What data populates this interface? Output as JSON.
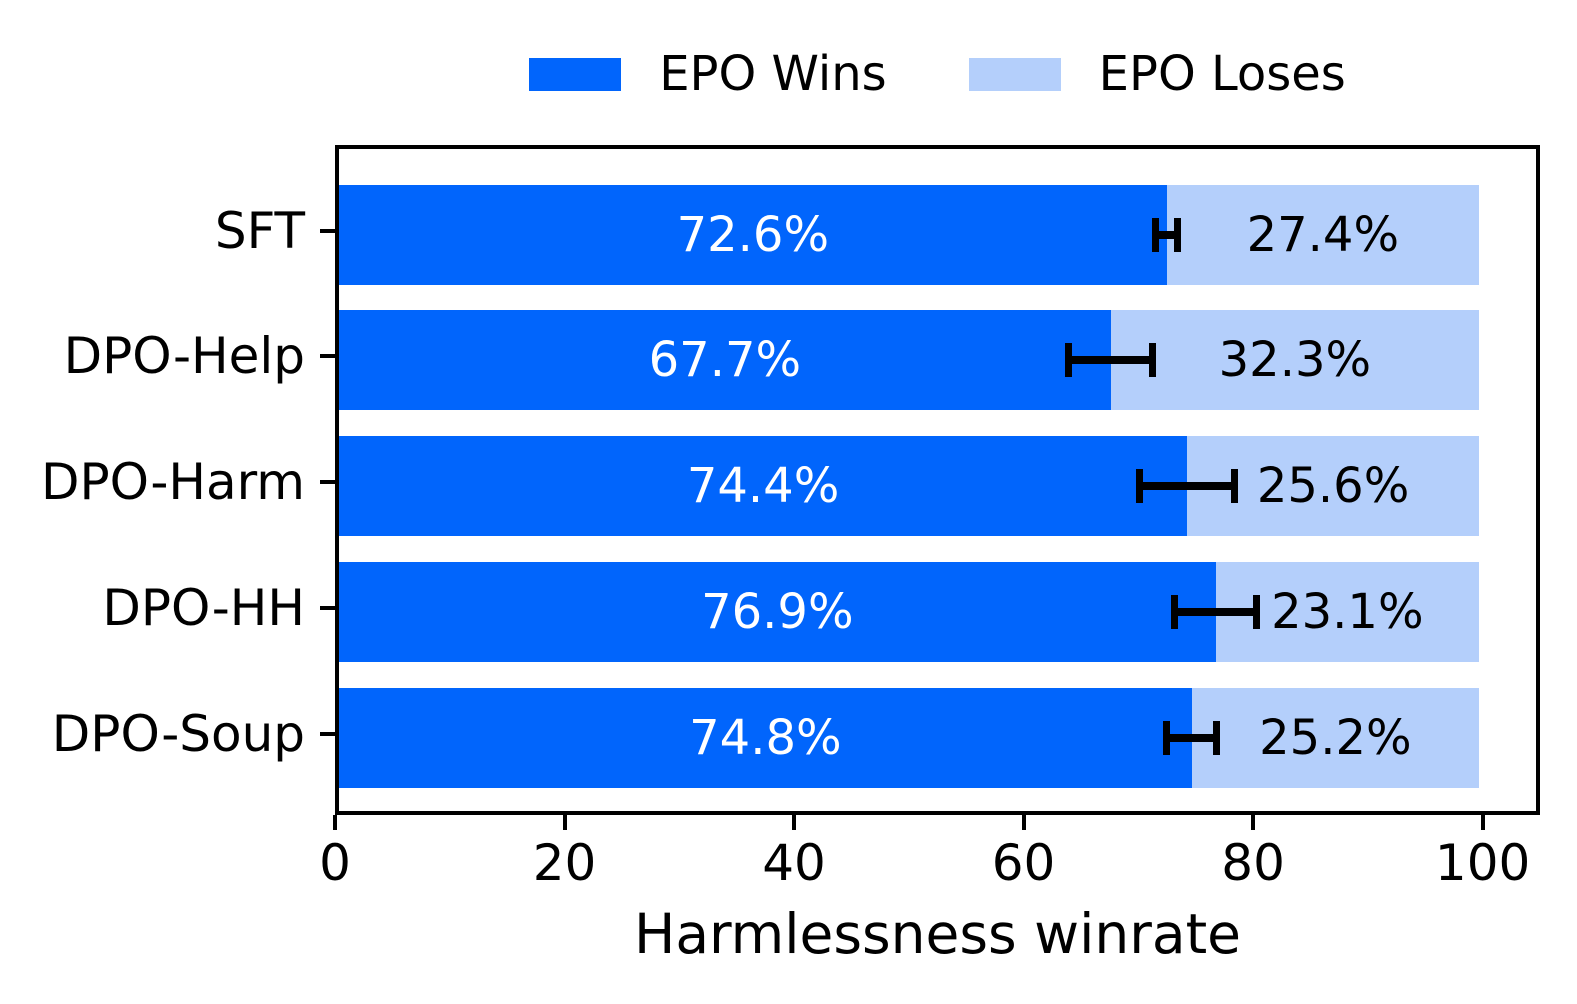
{
  "chart_data": {
    "type": "bar",
    "orientation": "horizontal",
    "stacked": true,
    "xlabel": "Harmlessness winrate",
    "xlim": [
      0,
      105
    ],
    "x_ticks": [
      0,
      20,
      40,
      60,
      80,
      100
    ],
    "grid": false,
    "categories": [
      "SFT",
      "DPO-Help",
      "DPO-Harm",
      "DPO-HH",
      "DPO-Soup"
    ],
    "series": [
      {
        "name": "EPO Wins",
        "color": "#0165fc",
        "label_color": "#ffffff",
        "values": [
          72.6,
          67.7,
          74.4,
          76.9,
          74.8
        ],
        "labels": [
          "72.6%",
          "67.7%",
          "74.4%",
          "76.9%",
          "74.8%"
        ]
      },
      {
        "name": "EPO Loses",
        "color": "#b4cffb",
        "label_color": "#000000",
        "values": [
          27.4,
          32.3,
          25.6,
          23.1,
          25.2
        ],
        "labels": [
          "27.4%",
          "32.3%",
          "25.6%",
          "23.1%",
          "25.2%"
        ]
      }
    ],
    "error_bars": {
      "attached_to": "EPO Wins",
      "color": "#000000",
      "centers": [
        72.6,
        67.7,
        74.4,
        76.9,
        74.8
      ],
      "half_widths": [
        1.3,
        4.0,
        4.5,
        3.9,
        2.5
      ]
    },
    "legend": {
      "position": "top",
      "entries": [
        {
          "label": "EPO Wins",
          "color": "#0165fc"
        },
        {
          "label": "EPO Loses",
          "color": "#b4cffb"
        }
      ]
    }
  }
}
